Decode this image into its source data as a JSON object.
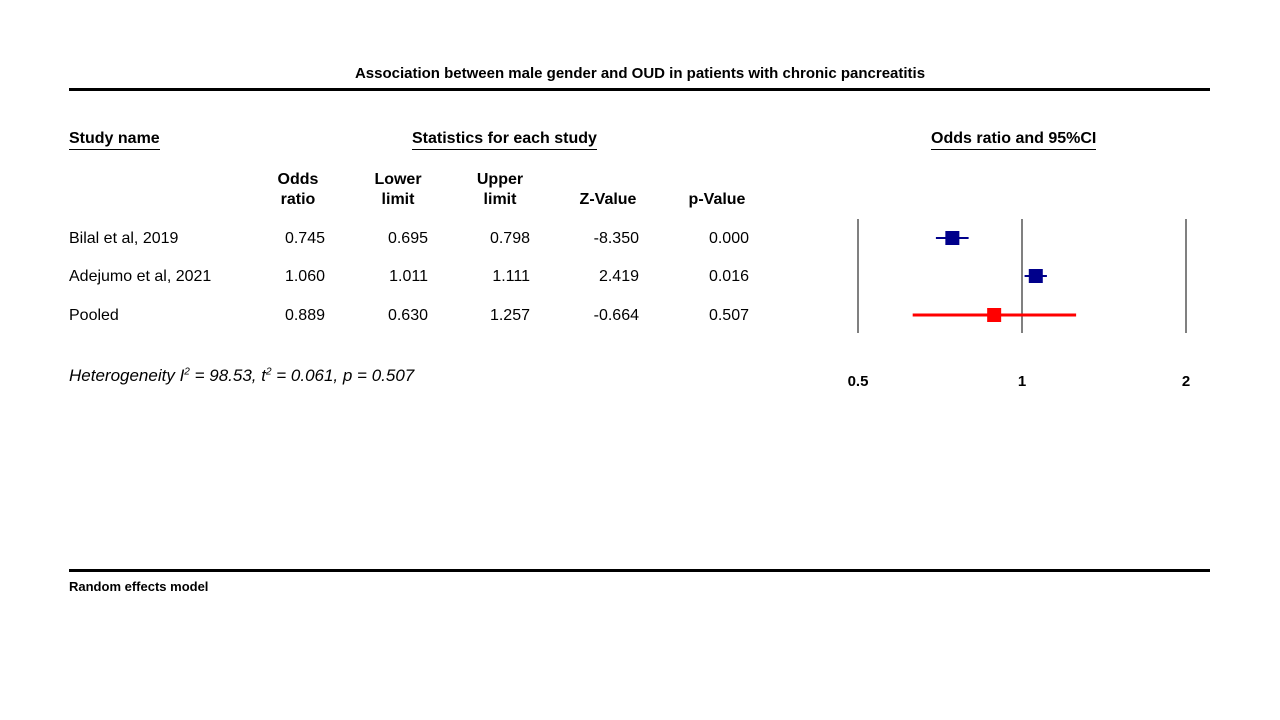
{
  "title": "Association between male gender and OUD in patients with chronic pancreatitis",
  "headers": {
    "study_name": "Study name",
    "stats_group": "Statistics for each study",
    "plot_group": "Odds ratio and 95%CI",
    "odds_ratio": [
      "Odds",
      "ratio"
    ],
    "lower_limit": [
      "Lower",
      "limit"
    ],
    "upper_limit": [
      "Upper",
      "limit"
    ],
    "z_value": "Z-Value",
    "p_value": "p-Value"
  },
  "rows": [
    {
      "study": "Bilal et al, 2019",
      "or": "0.745",
      "lower": "0.695",
      "upper": "0.798",
      "z": "-8.350",
      "p": "0.000"
    },
    {
      "study": "Adejumo et al, 2021",
      "or": "1.060",
      "lower": "1.011",
      "upper": "1.111",
      "z": "2.419",
      "p": "0.016"
    },
    {
      "study": "Pooled",
      "or": "0.889",
      "lower": "0.630",
      "upper": "1.257",
      "z": "-0.664",
      "p": "0.507"
    }
  ],
  "heterogeneity": {
    "prefix": "Heterogeneity I",
    "i2_sup": "2",
    "i2_part": " = 98.53, t",
    "t2_sup": "2",
    "rest": " = 0.061, p = 0.507"
  },
  "footnote": "Random effects model",
  "chart_data": {
    "type": "scatter",
    "title": "Association between male gender and OUD in patients with chronic pancreatitis",
    "xscale": "log",
    "xlim": [
      0.5,
      2
    ],
    "ticks": [
      "0.5",
      "1",
      "2"
    ],
    "tick_values": [
      0.5,
      1,
      2
    ],
    "series": [
      {
        "name": "Bilal et al, 2019",
        "estimate": 0.745,
        "lower": 0.695,
        "upper": 0.798,
        "color": "#00008b"
      },
      {
        "name": "Adejumo et al, 2021",
        "estimate": 1.06,
        "lower": 1.011,
        "upper": 1.111,
        "color": "#00008b"
      },
      {
        "name": "Pooled",
        "estimate": 0.889,
        "lower": 0.63,
        "upper": 1.257,
        "color": "#ff0000"
      }
    ]
  }
}
